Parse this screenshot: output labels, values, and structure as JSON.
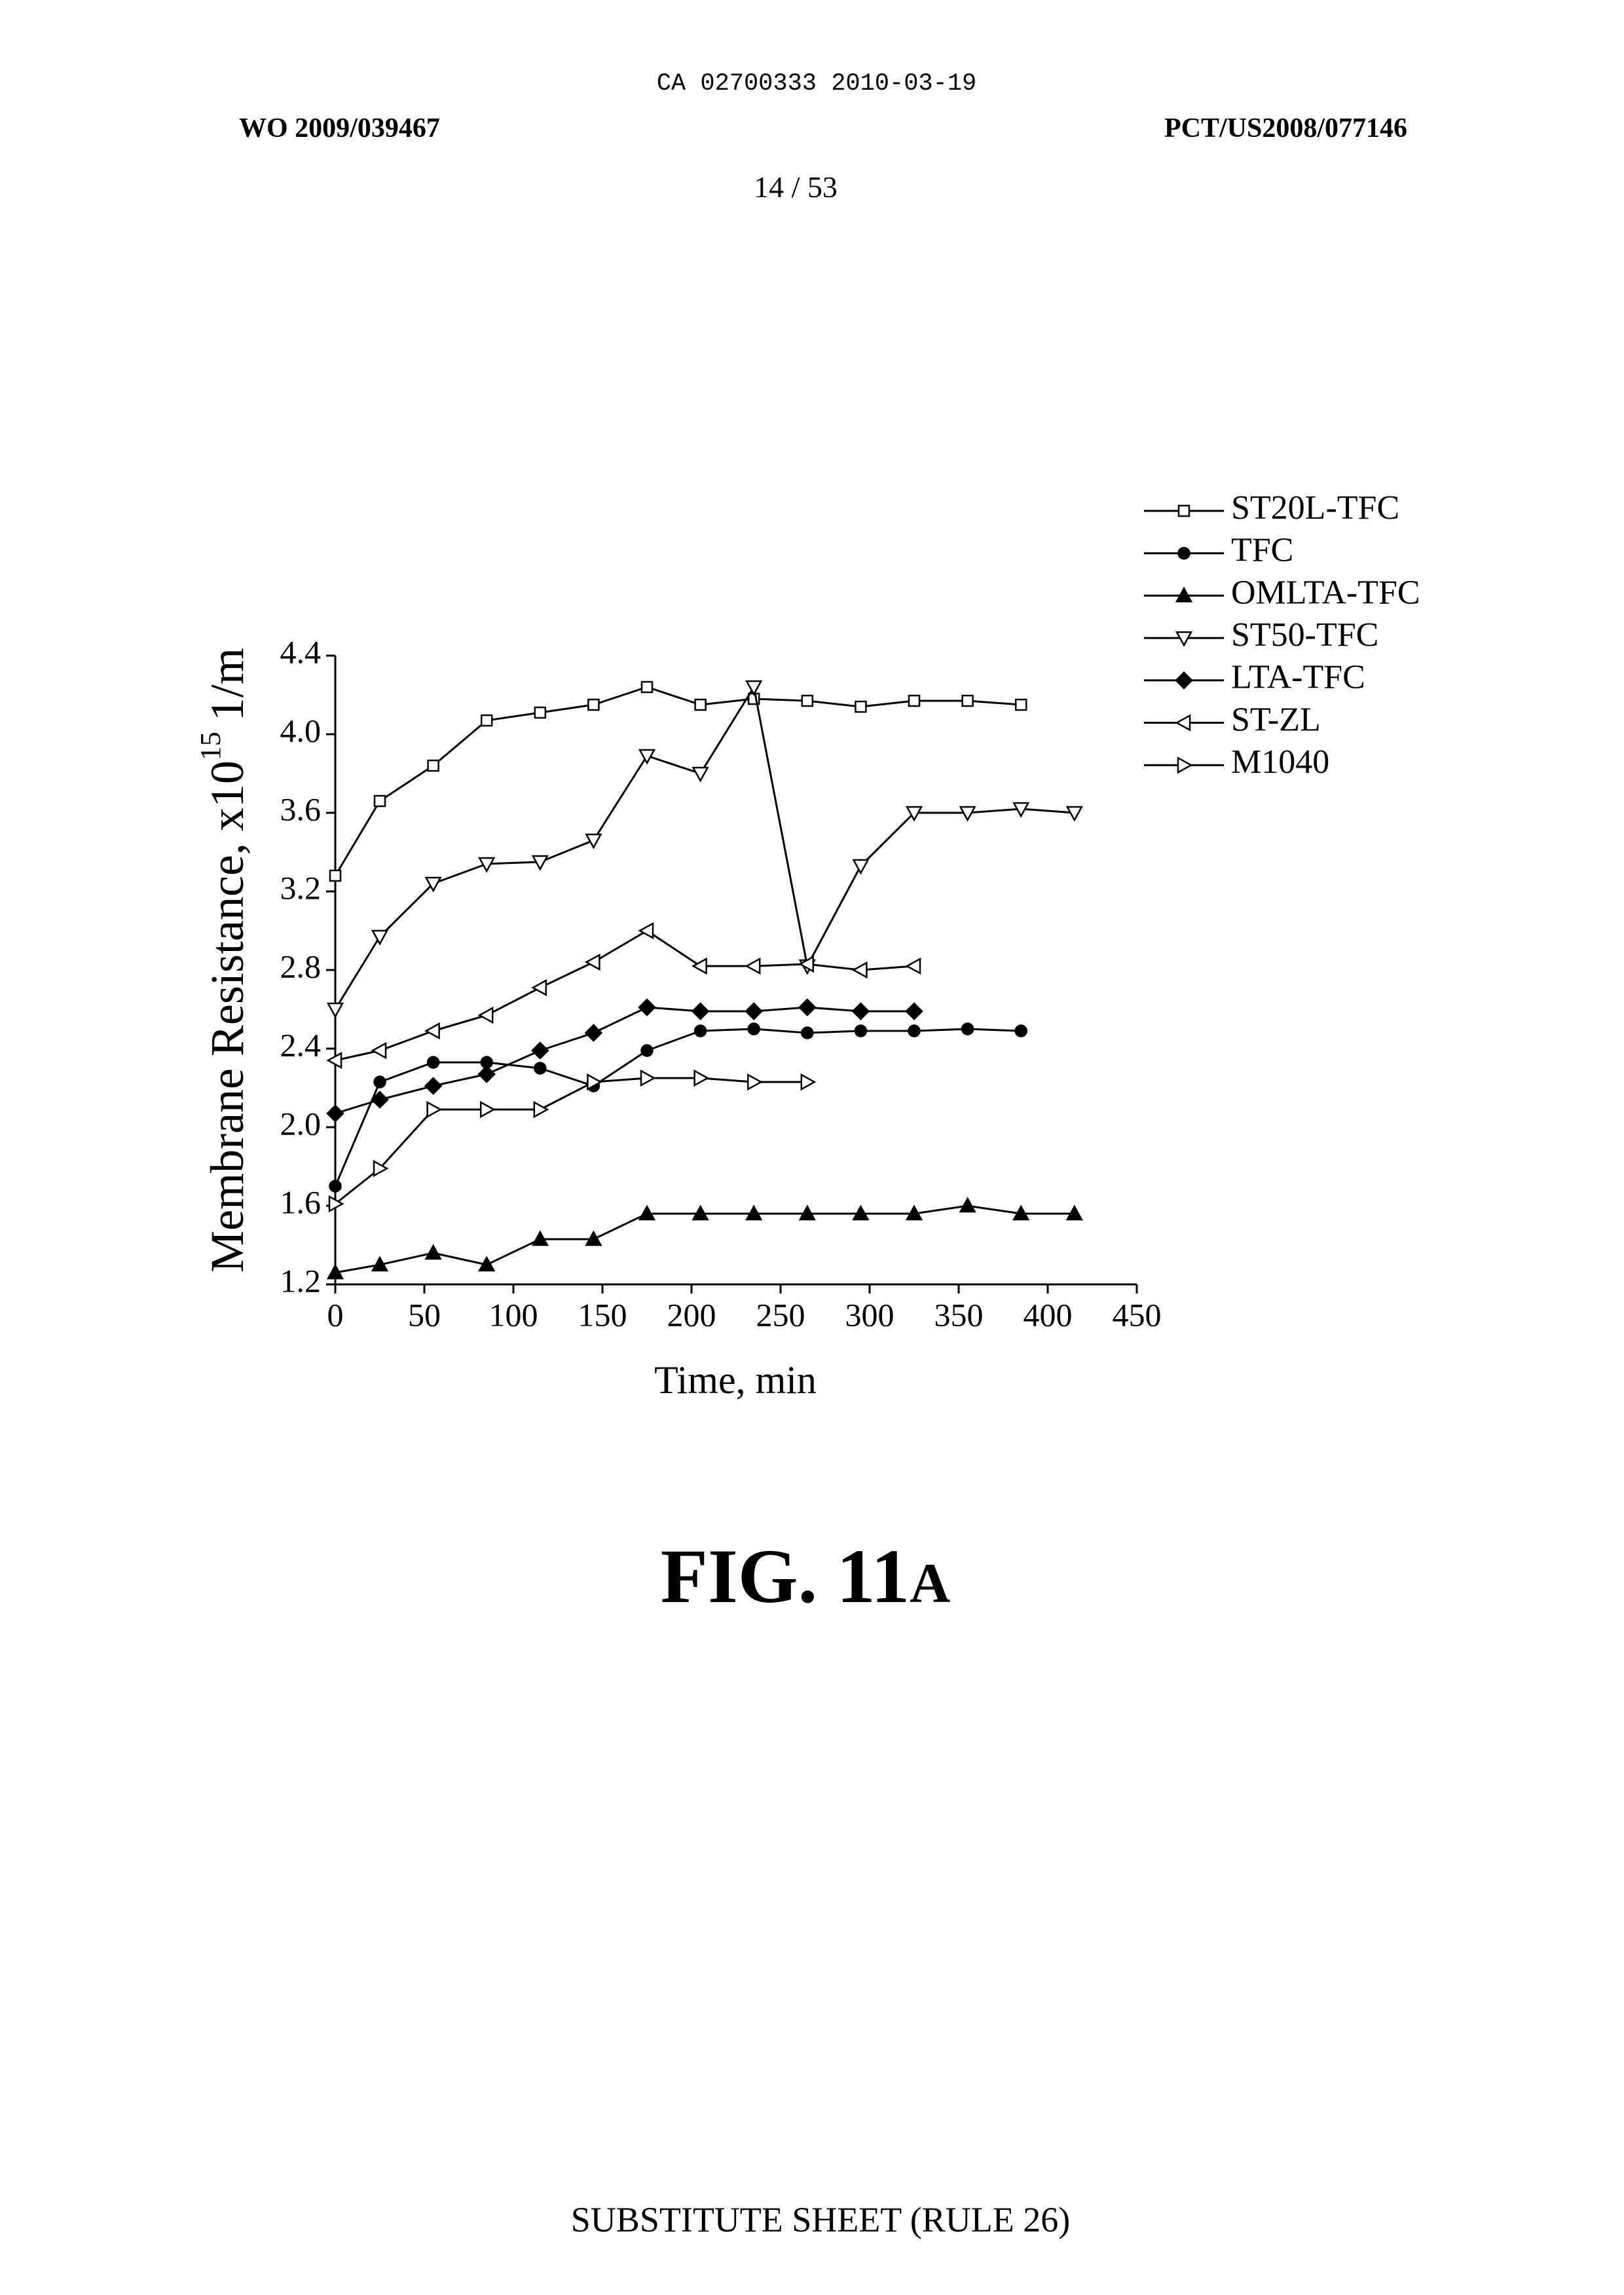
{
  "header": {
    "document_id": "CA 02700333 2010-03-19",
    "publication_number": "WO 2009/039467",
    "application_number": "PCT/US2008/077146",
    "page_number": "14 / 53"
  },
  "figure": {
    "label_main": "FIG. 11",
    "label_suffix": "A"
  },
  "footer": {
    "text": "SUBSTITUTE SHEET (RULE 26)"
  },
  "chart_data": {
    "type": "line",
    "xlabel": "Time, min",
    "ylabel": "Membrane Resistance, x10",
    "ylabel_superscript": "15",
    "ylabel_unit": "1/m",
    "xlim": [
      0,
      450
    ],
    "ylim": [
      1.2,
      4.4
    ],
    "x_ticks": [
      "0",
      "50",
      "100",
      "150",
      "200",
      "250",
      "300",
      "350",
      "400",
      "450"
    ],
    "y_ticks": [
      "1.2",
      "1.6",
      "2.0",
      "2.4",
      "2.8",
      "3.2",
      "3.6",
      "4.0",
      "4.4"
    ],
    "grid": false,
    "legend": "top-right",
    "series": [
      {
        "name": "ST20L-TFC",
        "marker": "open-square",
        "x": [
          0,
          25,
          55,
          85,
          115,
          145,
          175,
          205,
          235,
          265,
          295,
          325,
          355,
          385
        ],
        "values": [
          3.28,
          3.66,
          3.84,
          4.07,
          4.11,
          4.15,
          4.24,
          4.15,
          4.18,
          4.17,
          4.14,
          4.17,
          4.17,
          4.15
        ]
      },
      {
        "name": "TFC",
        "marker": "filled-circle",
        "x": [
          0,
          25,
          55,
          85,
          115,
          145,
          175,
          205,
          235,
          265,
          295,
          325,
          355,
          385
        ],
        "values": [
          1.7,
          2.23,
          2.33,
          2.33,
          2.3,
          2.21,
          2.39,
          2.49,
          2.5,
          2.48,
          2.49,
          2.49,
          2.5,
          2.49
        ]
      },
      {
        "name": "OMLTA-TFC",
        "marker": "filled-triangle-up",
        "x": [
          0,
          25,
          55,
          85,
          115,
          145,
          175,
          205,
          235,
          265,
          295,
          325,
          355,
          385,
          415
        ],
        "values": [
          1.26,
          1.3,
          1.36,
          1.3,
          1.43,
          1.43,
          1.56,
          1.56,
          1.56,
          1.56,
          1.56,
          1.56,
          1.6,
          1.56,
          1.56
        ]
      },
      {
        "name": "ST50-TFC",
        "marker": "open-triangle-down",
        "x": [
          0,
          25,
          55,
          85,
          115,
          145,
          175,
          205,
          235,
          265,
          295,
          325,
          355,
          385,
          415
        ],
        "values": [
          2.6,
          2.97,
          3.24,
          3.34,
          3.35,
          3.46,
          3.89,
          3.8,
          4.24,
          2.82,
          3.33,
          3.6,
          3.6,
          3.62,
          3.6
        ]
      },
      {
        "name": "LTA-TFC",
        "marker": "filled-diamond",
        "x": [
          0,
          25,
          55,
          85,
          115,
          145,
          175,
          205,
          235,
          265,
          295,
          325
        ],
        "values": [
          2.07,
          2.14,
          2.21,
          2.27,
          2.39,
          2.48,
          2.61,
          2.59,
          2.59,
          2.61,
          2.59,
          2.59
        ]
      },
      {
        "name": "ST-ZL",
        "marker": "open-triangle-left",
        "x": [
          0,
          25,
          55,
          85,
          115,
          145,
          175,
          205,
          235,
          265,
          295,
          325
        ],
        "values": [
          2.34,
          2.39,
          2.49,
          2.57,
          2.71,
          2.84,
          3.0,
          2.82,
          2.82,
          2.83,
          2.8,
          2.82
        ]
      },
      {
        "name": "M1040",
        "marker": "open-triangle-right",
        "x": [
          0,
          25,
          55,
          85,
          115,
          145,
          175,
          205,
          235,
          265
        ],
        "values": [
          1.61,
          1.79,
          2.09,
          2.09,
          2.09,
          2.23,
          2.25,
          2.25,
          2.23,
          2.23
        ]
      }
    ]
  }
}
